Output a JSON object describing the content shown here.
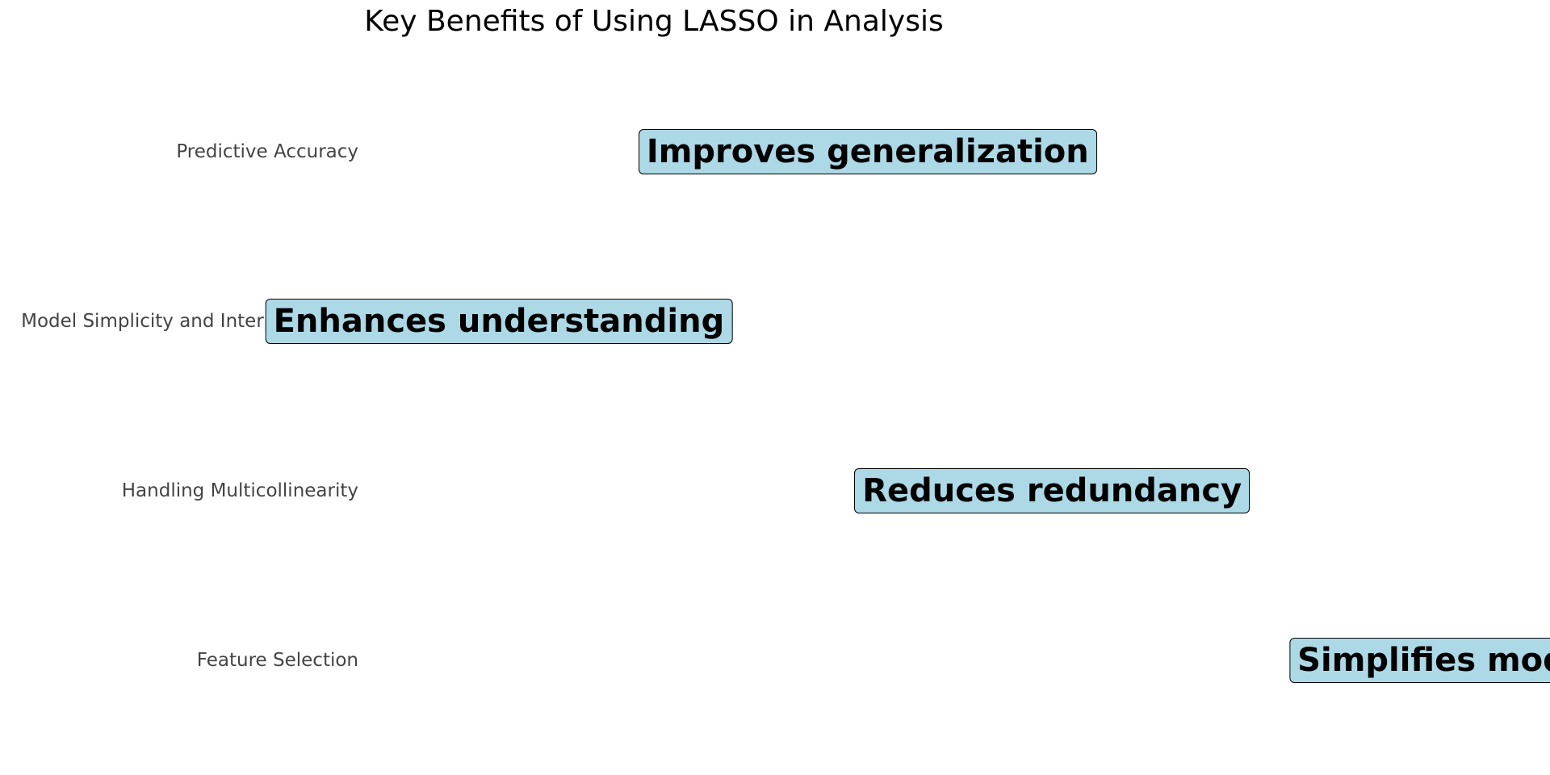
{
  "chart_data": {
    "type": "scatter",
    "title": "Key Benefits of Using LASSO in Analysis",
    "xlabel": "",
    "ylabel": "",
    "categories": [
      "Feature Selection",
      "Handling Multicollinearity",
      "Model Simplicity and Interpretability",
      "Predictive Accuracy"
    ],
    "points": [
      {
        "category": "Feature Selection",
        "x": 3.5,
        "label": "Simplifies models"
      },
      {
        "category": "Handling Multicollinearity",
        "x": 2.4,
        "label": "Reduces redundancy"
      },
      {
        "category": "Model Simplicity and Interpretability",
        "x": 0.9,
        "label": "Enhances understanding"
      },
      {
        "category": "Predictive Accuracy",
        "x": 1.9,
        "label": "Improves generalization"
      }
    ],
    "xlim": [
      0.55,
      3.75
    ],
    "grid": false,
    "legend": "none",
    "label_box_color": "#add8e6",
    "label_border_color": "#000000"
  }
}
